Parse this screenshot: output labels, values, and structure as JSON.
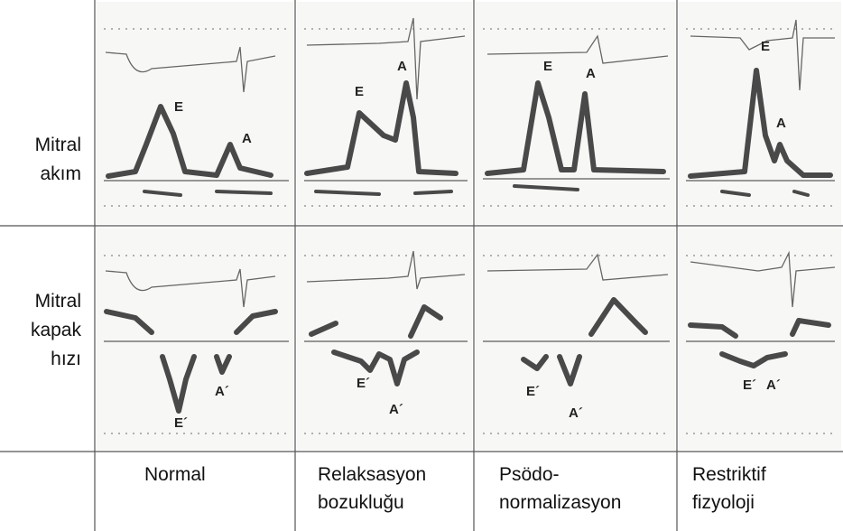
{
  "row_labels": [
    [
      "Mitral",
      "akım"
    ],
    [
      "Mitral",
      "kapak",
      "hızı"
    ]
  ],
  "column_labels": [
    [
      "Normal"
    ],
    [
      "Relaksasyon",
      "bozukluğu"
    ],
    [
      "Psödo-",
      "normalizasyon"
    ],
    [
      "Restriktif",
      "fizyoloji"
    ]
  ],
  "panels": [
    [
      {
        "labels": [
          "E",
          "A"
        ]
      },
      {
        "labels": [
          "E",
          "A"
        ]
      },
      {
        "labels": [
          "E",
          "A"
        ]
      },
      {
        "labels": [
          "E",
          "A"
        ]
      }
    ],
    [
      {
        "labels": [
          "A´",
          "E´"
        ]
      },
      {
        "labels": [
          "E´",
          "A´"
        ]
      },
      {
        "labels": [
          "E´",
          "A´"
        ]
      },
      {
        "labels": [
          "E´",
          "A´"
        ]
      }
    ]
  ]
}
